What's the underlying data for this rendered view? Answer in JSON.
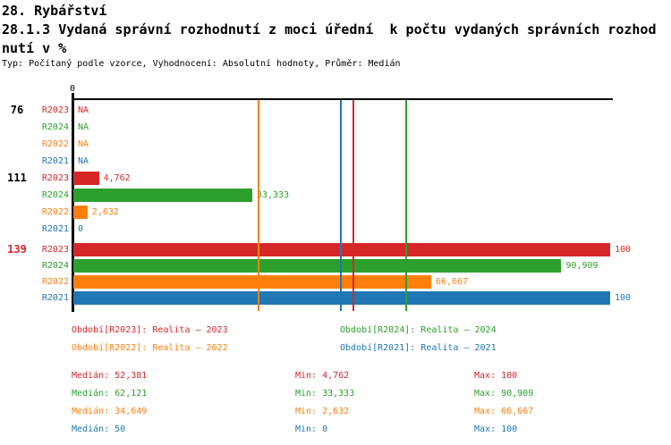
{
  "header": {
    "title_line1": "28. Rybářství",
    "title_line2": "28.1.3 Vydaná správní rozhodnutí z moci úřední  k počtu vydaných správních rozhod",
    "title_line3": "nutí v %",
    "subtitle": "Typ: Počítaný podle vzorce, Vyhodnocení: Absolutní hodnoty, Průměr: Medián"
  },
  "colors": {
    "R2023": "#d62728",
    "R2024": "#2ca02c",
    "R2022": "#ff7f0e",
    "R2021": "#1f77b4",
    "axis": "#000000",
    "highlight_group_label": "#d62728"
  },
  "chart_data": {
    "type": "bar",
    "orientation": "horizontal",
    "unit": "%",
    "axis": {
      "min": 0,
      "max": 100,
      "tick_label": "0"
    },
    "series_order": [
      "R2023",
      "R2024",
      "R2022",
      "R2021"
    ],
    "groups": [
      {
        "label": "76",
        "highlight": false,
        "rows": [
          {
            "series": "R2023",
            "value": null,
            "display": "NA"
          },
          {
            "series": "R2024",
            "value": null,
            "display": "NA"
          },
          {
            "series": "R2022",
            "value": null,
            "display": "NA"
          },
          {
            "series": "R2021",
            "value": null,
            "display": "NA"
          }
        ]
      },
      {
        "label": "111",
        "highlight": false,
        "rows": [
          {
            "series": "R2023",
            "value": 4.762,
            "display": "4,762"
          },
          {
            "series": "R2024",
            "value": 33.333,
            "display": "33,333"
          },
          {
            "series": "R2022",
            "value": 2.632,
            "display": "2,632"
          },
          {
            "series": "R2021",
            "value": 0,
            "display": "0"
          }
        ]
      },
      {
        "label": "139",
        "highlight": true,
        "rows": [
          {
            "series": "R2023",
            "value": 100,
            "display": "100"
          },
          {
            "series": "R2024",
            "value": 90.909,
            "display": "90,909"
          },
          {
            "series": "R2022",
            "value": 66.667,
            "display": "66,667"
          },
          {
            "series": "R2021",
            "value": 100,
            "display": "100"
          }
        ]
      }
    ],
    "median_lines": [
      {
        "series": "R2022",
        "value": 34.649
      },
      {
        "series": "R2021",
        "value": 50
      },
      {
        "series": "R2023",
        "value": 52.381
      },
      {
        "series": "R2024",
        "value": 62.121
      }
    ]
  },
  "legend": {
    "items": [
      {
        "series": "R2023",
        "text": "Období[R2023]: Realita – 2023"
      },
      {
        "series": "R2024",
        "text": "Období[R2024]: Realita – 2024"
      },
      {
        "series": "R2022",
        "text": "Období[R2022]: Realita – 2022"
      },
      {
        "series": "R2021",
        "text": "Období[R2021]: Realita – 2021"
      }
    ]
  },
  "stats": {
    "rows": [
      {
        "series": "R2023",
        "median": 52.381,
        "min": 4.762,
        "max": 100,
        "median_text": "Medián: 52,381",
        "min_text": "Min: 4,762",
        "max_text": "Max: 100"
      },
      {
        "series": "R2024",
        "median": 62.121,
        "min": 33.333,
        "max": 90.909,
        "median_text": "Medián: 62,121",
        "min_text": "Min: 33,333",
        "max_text": "Max: 90,909"
      },
      {
        "series": "R2022",
        "median": 34.649,
        "min": 2.632,
        "max": 66.667,
        "median_text": "Medián: 34,649",
        "min_text": "Min: 2,632",
        "max_text": "Max: 66,667"
      },
      {
        "series": "R2021",
        "median": 50,
        "min": 0,
        "max": 100,
        "median_text": "Medián: 50",
        "min_text": "Min: 0",
        "max_text": "Max: 100"
      }
    ]
  }
}
